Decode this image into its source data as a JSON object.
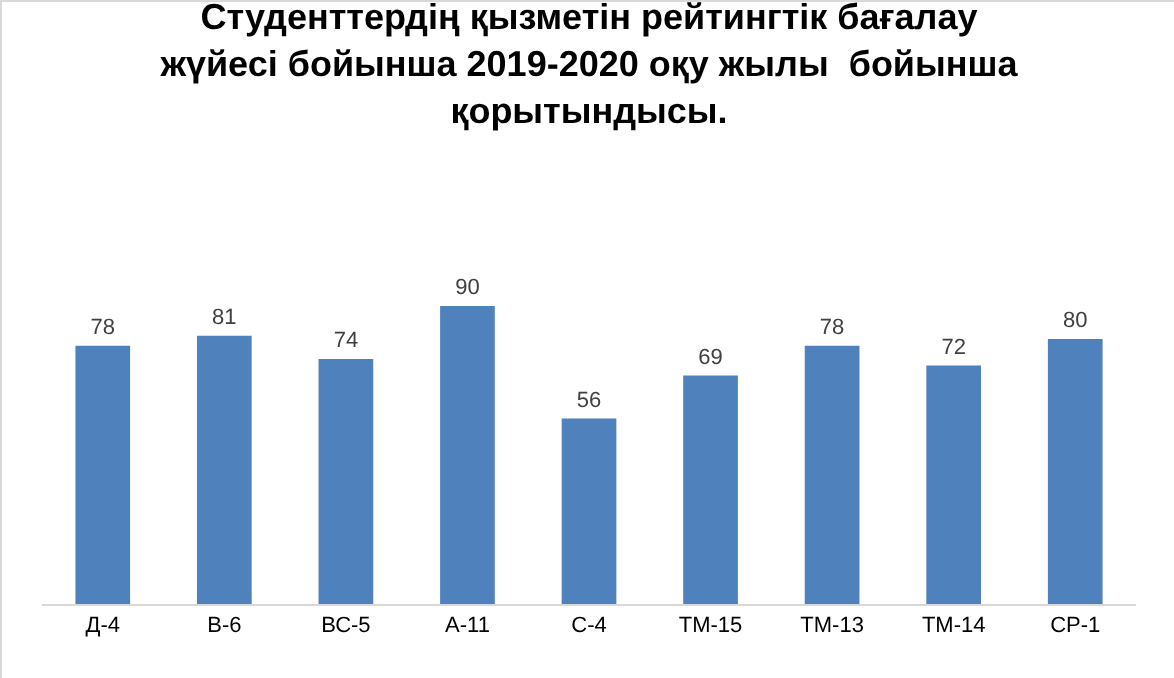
{
  "chart_data": {
    "type": "bar",
    "title": "Студенттердің қызметін рейтингтік бағалау\nжүйесі бойынша 2019-2020 оқу жылы  бойынша\nқорытындысы.",
    "categories": [
      "Д-4",
      "В-6",
      "ВС-5",
      "А-11",
      "С-4",
      "ТМ-15",
      "ТМ-13",
      "ТМ-14",
      "СР-1"
    ],
    "values": [
      78,
      81,
      74,
      90,
      56,
      69,
      78,
      72,
      80
    ],
    "color": "#4f81bd",
    "data_labels": true
  }
}
